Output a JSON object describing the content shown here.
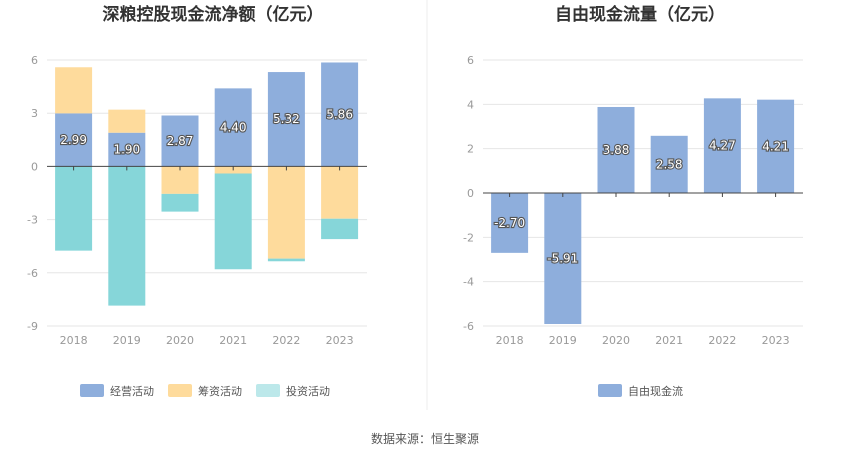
{
  "chart_data": [
    {
      "type": "bar",
      "stacked": true,
      "title": "深粮控股现金流净额（亿元）",
      "categories": [
        "2018",
        "2019",
        "2020",
        "2021",
        "2022",
        "2023"
      ],
      "y_ticks": [
        "6",
        "3",
        "0",
        "-3",
        "-6",
        "-9"
      ],
      "ylim": [
        -9,
        6
      ],
      "series": [
        {
          "name": "经营活动",
          "color": "#8eaedc",
          "values": [
            2.99,
            1.9,
            2.87,
            4.4,
            5.32,
            5.86
          ],
          "labels": [
            "2.99",
            "1.90",
            "2.87",
            "4.40",
            "5.32",
            "5.86"
          ]
        },
        {
          "name": "筹资活动",
          "color": "#fedb9c",
          "values": [
            2.6,
            1.3,
            -1.55,
            -0.4,
            -5.2,
            -2.95
          ]
        },
        {
          "name": "投资活动",
          "color": "#86d6d9",
          "values": [
            -4.75,
            -7.85,
            -1.0,
            -5.4,
            -0.15,
            -1.15
          ]
        }
      ],
      "legend_colors": [
        "#8eaedc",
        "#fedb9c",
        "#bce8ea"
      ]
    },
    {
      "type": "bar",
      "title": "自由现金流量（亿元）",
      "categories": [
        "2018",
        "2019",
        "2020",
        "2021",
        "2022",
        "2023"
      ],
      "y_ticks": [
        "6",
        "4",
        "2",
        "0",
        "-2",
        "-4",
        "-6"
      ],
      "ylim": [
        -6,
        6
      ],
      "series": [
        {
          "name": "自由现金流",
          "color": "#8eaedc",
          "values": [
            -2.7,
            -5.91,
            3.88,
            2.58,
            4.27,
            4.21
          ],
          "labels": [
            "-2.70",
            "-5.91",
            "3.88",
            "2.58",
            "4.27",
            "4.21"
          ]
        }
      ],
      "legend_colors": [
        "#8eaedc"
      ]
    }
  ],
  "source_text": "数据来源：恒生聚源"
}
